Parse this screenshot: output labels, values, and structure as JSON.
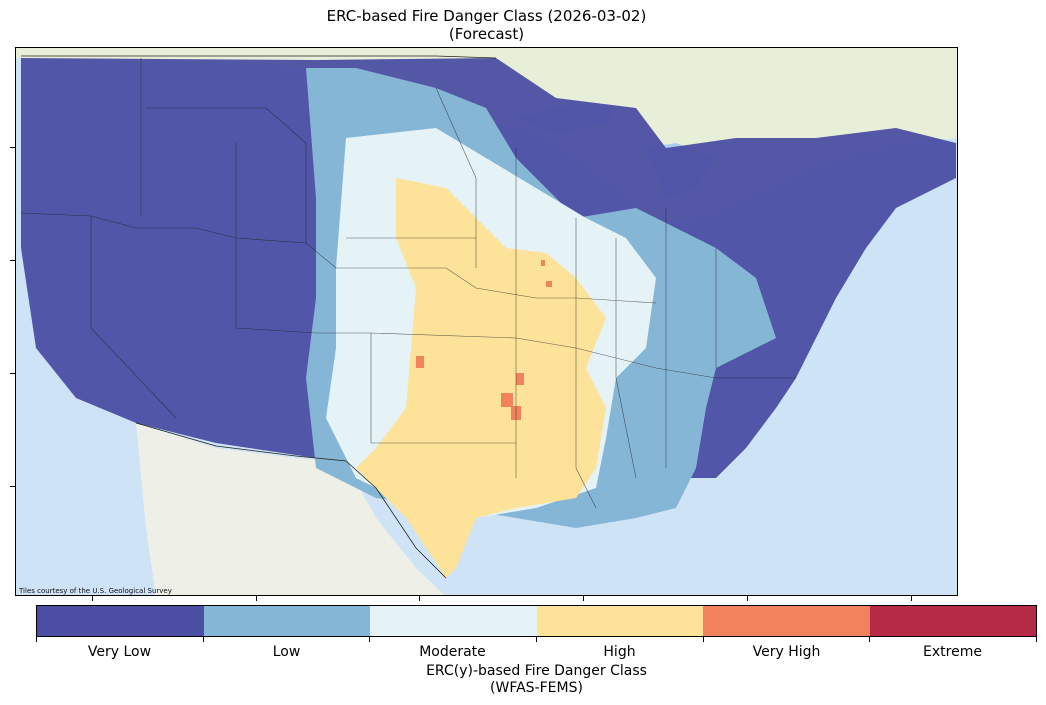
{
  "title": {
    "line1": "ERC-based Fire Danger Class (2026-03-02)",
    "line2": "(Forecast)"
  },
  "map": {
    "attribution": "Tiles courtesy of the U.S. Geological Survey",
    "colors": {
      "ocean": "#cfe3f7",
      "land_base": "#eef0e8",
      "canada_land": "#e8efd9",
      "great_lakes": "#a9cdf0"
    }
  },
  "colorbar": {
    "title_line1": "ERC(y)-based Fire Danger Class",
    "title_line2": "(WFAS-FEMS)",
    "classes": [
      {
        "label": "Very Low",
        "color": "#4b4ea3"
      },
      {
        "label": "Low",
        "color": "#86b6d6"
      },
      {
        "label": "Moderate",
        "color": "#e5f3f7"
      },
      {
        "label": "High",
        "color": "#fde29a"
      },
      {
        "label": "Very High",
        "color": "#f1835c"
      },
      {
        "label": "Extreme",
        "color": "#b52a46"
      }
    ]
  }
}
